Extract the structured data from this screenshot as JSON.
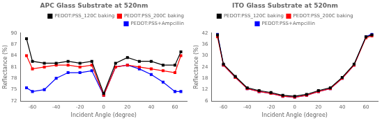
{
  "chart_data": [
    {
      "type": "line",
      "title": "APC Glass Substrate at 520nm",
      "xlabel": "Incident Angle (degree)",
      "ylabel": "Reflectance (%)",
      "x": [
        -65,
        -60,
        -50,
        -40,
        -30,
        -20,
        -10,
        0,
        10,
        20,
        30,
        40,
        50,
        60,
        65
      ],
      "xlim": [
        -70,
        70
      ],
      "xticks": [
        -60,
        -40,
        -20,
        0,
        20,
        40,
        60
      ],
      "ylim": [
        72,
        90
      ],
      "yticks": [
        72,
        75,
        78,
        81,
        84,
        87,
        90
      ],
      "grid": false,
      "legend": "upper right",
      "series": [
        {
          "name": "PEDOT:PSS_120C baking",
          "color": "black",
          "marker": "square",
          "line_style": "solid",
          "values": [
            88.5,
            82.5,
            82.0,
            82.0,
            82.5,
            82.0,
            82.5,
            74.0,
            82.0,
            83.5,
            82.5,
            82.5,
            81.5,
            81.5,
            85.0
          ]
        },
        {
          "name": "PEDOT:PSS_200C baking",
          "color": "red",
          "marker": "square",
          "line_style": "solid",
          "values": [
            84.0,
            80.5,
            81.0,
            81.5,
            81.5,
            81.0,
            81.5,
            73.5,
            81.0,
            81.5,
            81.0,
            80.5,
            80.0,
            79.5,
            84.0
          ]
        },
        {
          "name": "PEDOT:PSS+Ampcillin",
          "color": "blue",
          "marker": "square",
          "line_style": "solid",
          "values": [
            75.5,
            74.5,
            75.0,
            78.0,
            79.5,
            79.5,
            80.0,
            73.5,
            81.0,
            81.5,
            80.5,
            79.0,
            77.0,
            74.5,
            74.5
          ]
        }
      ]
    },
    {
      "type": "line",
      "title": "ITO Glass Substrate at 520nm",
      "xlabel": "Incident Angle (degree)",
      "ylabel": "Reflectance (%)",
      "x": [
        -65,
        -60,
        -50,
        -40,
        -30,
        -20,
        -10,
        0,
        10,
        20,
        30,
        40,
        50,
        60,
        65
      ],
      "xlim": [
        -70,
        70
      ],
      "xticks": [
        -60,
        -40,
        -20,
        0,
        20,
        40,
        60
      ],
      "ylim": [
        6,
        42
      ],
      "yticks": [
        6,
        12,
        18,
        24,
        30,
        36,
        42
      ],
      "grid": false,
      "legend": "upper center",
      "series": [
        {
          "name": "PEDOT:PSS_120C baking",
          "color": "black",
          "marker": "square",
          "line_style": "solid",
          "values": [
            41.0,
            25.5,
            19.0,
            13.0,
            11.5,
            10.5,
            9.0,
            8.5,
            9.5,
            11.5,
            13.0,
            18.5,
            25.5,
            40.0,
            41.0
          ]
        },
        {
          "name": "PEDOT:PSS_200C baking",
          "color": "red",
          "marker": "square",
          "line_style": "solid",
          "values": [
            40.0,
            25.0,
            18.5,
            12.5,
            11.0,
            10.0,
            8.5,
            8.0,
            9.0,
            11.0,
            12.5,
            18.0,
            25.0,
            39.5,
            40.5
          ]
        },
        {
          "name": "PEDOT:PSS+Ampcillin",
          "color": "blue",
          "marker": "square",
          "line_style": "solid",
          "values": [
            41.5,
            25.0,
            18.5,
            12.5,
            11.0,
            10.0,
            8.5,
            8.0,
            9.0,
            11.0,
            12.5,
            18.0,
            25.0,
            40.0,
            41.5
          ]
        }
      ]
    }
  ]
}
